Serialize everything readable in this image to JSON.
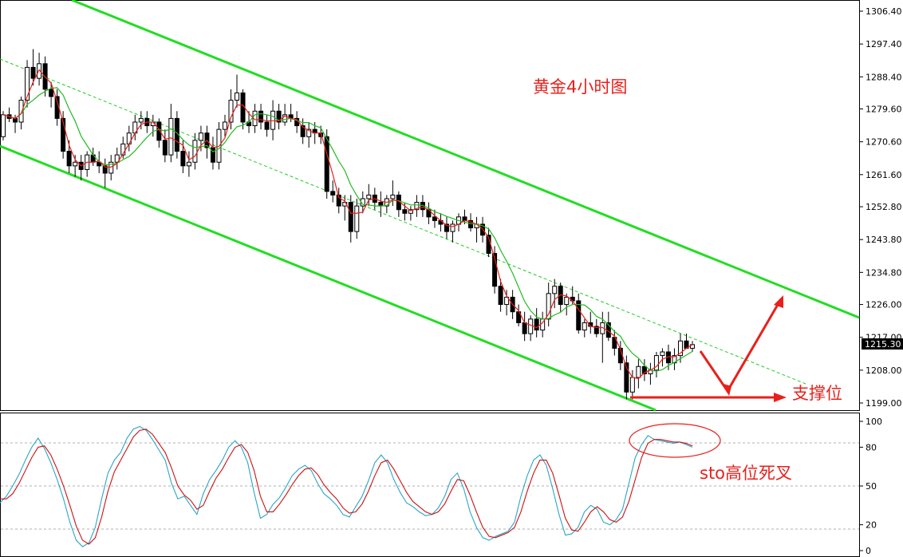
{
  "chart_data": [
    {
      "type": "candlestick",
      "title": "黄金4小时图",
      "y_ticks": [
        "1306.40",
        "1297.40",
        "1288.40",
        "1279.60",
        "1270.60",
        "1261.60",
        "1252.80",
        "1243.80",
        "1234.80",
        "1226.00",
        "1217.00",
        "1208.00",
        "1199.00"
      ],
      "ylim": [
        1197.6,
        1309.2
      ],
      "current_price": "1215.30",
      "support_label": "支撑位",
      "grid": false,
      "colors": {
        "channel": "#22dd22",
        "midline": "#22cc22",
        "ma_fast": "#e8201b",
        "ma_slow": "#22bb22",
        "annotation": "#e8201b",
        "candle": "#000000"
      },
      "candles": [
        [
          1272,
          1279,
          1271,
          1278
        ],
        [
          1278,
          1280,
          1276,
          1277
        ],
        [
          1277,
          1278,
          1273,
          1276
        ],
        [
          1276,
          1283,
          1274,
          1282
        ],
        [
          1282,
          1293,
          1280,
          1291
        ],
        [
          1291,
          1296,
          1286,
          1288
        ],
        [
          1288,
          1295,
          1286,
          1292
        ],
        [
          1292,
          1294,
          1283,
          1285
        ],
        [
          1285,
          1287,
          1280,
          1283
        ],
        [
          1283,
          1285,
          1275,
          1277
        ],
        [
          1277,
          1279,
          1266,
          1268
        ],
        [
          1268,
          1271,
          1262,
          1264
        ],
        [
          1264,
          1267,
          1261,
          1265
        ],
        [
          1265,
          1267,
          1260,
          1263
        ],
        [
          1263,
          1268,
          1261,
          1267
        ],
        [
          1267,
          1269,
          1264,
          1265
        ],
        [
          1265,
          1268,
          1262,
          1264
        ],
        [
          1264,
          1266,
          1258,
          1262
        ],
        [
          1262,
          1267,
          1260,
          1265
        ],
        [
          1265,
          1269,
          1263,
          1267
        ],
        [
          1267,
          1272,
          1266,
          1270
        ],
        [
          1270,
          1275,
          1268,
          1273
        ],
        [
          1273,
          1278,
          1271,
          1276
        ],
        [
          1276,
          1279,
          1274,
          1277
        ],
        [
          1277,
          1279,
          1273,
          1275
        ],
        [
          1275,
          1278,
          1272,
          1276
        ],
        [
          1276,
          1277,
          1269,
          1271
        ],
        [
          1271,
          1274,
          1265,
          1267
        ],
        [
          1267,
          1281,
          1265,
          1277
        ],
        [
          1277,
          1279,
          1266,
          1268
        ],
        [
          1268,
          1271,
          1262,
          1264
        ],
        [
          1264,
          1268,
          1261,
          1265
        ],
        [
          1265,
          1273,
          1263,
          1271
        ],
        [
          1271,
          1275,
          1268,
          1273
        ],
        [
          1273,
          1275,
          1266,
          1269
        ],
        [
          1269,
          1272,
          1263,
          1265
        ],
        [
          1265,
          1276,
          1263,
          1274
        ],
        [
          1274,
          1278,
          1272,
          1276
        ],
        [
          1276,
          1285,
          1274,
          1282
        ],
        [
          1282,
          1289,
          1280,
          1284
        ],
        [
          1284,
          1285,
          1274,
          1276
        ],
        [
          1276,
          1279,
          1273,
          1275
        ],
        [
          1275,
          1281,
          1273,
          1279
        ],
        [
          1279,
          1281,
          1274,
          1276
        ],
        [
          1276,
          1278,
          1272,
          1274
        ],
        [
          1274,
          1282,
          1271,
          1279
        ],
        [
          1279,
          1281,
          1274,
          1276
        ],
        [
          1276,
          1281,
          1275,
          1278
        ],
        [
          1278,
          1281,
          1276,
          1277
        ],
        [
          1277,
          1279,
          1273,
          1275
        ],
        [
          1275,
          1277,
          1270,
          1272
        ],
        [
          1272,
          1276,
          1269,
          1274
        ],
        [
          1274,
          1276,
          1270,
          1273
        ],
        [
          1273,
          1275,
          1270,
          1272
        ],
        [
          1272,
          1274,
          1255,
          1257
        ],
        [
          1257,
          1260,
          1254,
          1256
        ],
        [
          1256,
          1258,
          1251,
          1253
        ],
        [
          1253,
          1256,
          1249,
          1254
        ],
        [
          1254,
          1256,
          1243,
          1246
        ],
        [
          1246,
          1255,
          1244,
          1253
        ],
        [
          1253,
          1257,
          1251,
          1255
        ],
        [
          1255,
          1259,
          1253,
          1256
        ],
        [
          1256,
          1258,
          1252,
          1254
        ],
        [
          1254,
          1257,
          1250,
          1253
        ],
        [
          1253,
          1256,
          1251,
          1255
        ],
        [
          1255,
          1260,
          1253,
          1256
        ],
        [
          1256,
          1257,
          1250,
          1252
        ],
        [
          1252,
          1254,
          1249,
          1251
        ],
        [
          1251,
          1253,
          1249,
          1252
        ],
        [
          1252,
          1256,
          1250,
          1254
        ],
        [
          1254,
          1256,
          1250,
          1252
        ],
        [
          1252,
          1254,
          1248,
          1250
        ],
        [
          1250,
          1252,
          1247,
          1249
        ],
        [
          1249,
          1251,
          1246,
          1248
        ],
        [
          1248,
          1250,
          1244,
          1246
        ],
        [
          1246,
          1249,
          1243,
          1248
        ],
        [
          1248,
          1251,
          1246,
          1250
        ],
        [
          1250,
          1252,
          1248,
          1249
        ],
        [
          1249,
          1251,
          1246,
          1247
        ],
        [
          1247,
          1250,
          1243,
          1248
        ],
        [
          1248,
          1250,
          1243,
          1245
        ],
        [
          1245,
          1247,
          1239,
          1240
        ],
        [
          1240,
          1242,
          1229,
          1231
        ],
        [
          1231,
          1233,
          1224,
          1226
        ],
        [
          1226,
          1230,
          1223,
          1228
        ],
        [
          1228,
          1230,
          1222,
          1224
        ],
        [
          1224,
          1226,
          1220,
          1221
        ],
        [
          1221,
          1224,
          1216,
          1218
        ],
        [
          1218,
          1223,
          1216,
          1222
        ],
        [
          1222,
          1225,
          1217,
          1219
        ],
        [
          1219,
          1224,
          1217,
          1222
        ],
        [
          1222,
          1232,
          1220,
          1229
        ],
        [
          1229,
          1233,
          1225,
          1231
        ],
        [
          1231,
          1232,
          1224,
          1226
        ],
        [
          1226,
          1229,
          1223,
          1228
        ],
        [
          1228,
          1231,
          1226,
          1227
        ],
        [
          1227,
          1229,
          1218,
          1219
        ],
        [
          1219,
          1222,
          1217,
          1221
        ],
        [
          1221,
          1224,
          1218,
          1220
        ],
        [
          1220,
          1222,
          1217,
          1218
        ],
        [
          1218,
          1224,
          1210,
          1221
        ],
        [
          1221,
          1224,
          1216,
          1217
        ],
        [
          1217,
          1219,
          1212,
          1214
        ],
        [
          1214,
          1216,
          1208,
          1210
        ],
        [
          1210,
          1212,
          1200,
          1202
        ],
        [
          1202,
          1208,
          1200,
          1206
        ],
        [
          1206,
          1211,
          1203,
          1209
        ],
        [
          1209,
          1211,
          1205,
          1207
        ],
        [
          1207,
          1210,
          1204,
          1208
        ],
        [
          1208,
          1213,
          1206,
          1212
        ],
        [
          1212,
          1214,
          1209,
          1213
        ],
        [
          1213,
          1215,
          1208,
          1210
        ],
        [
          1210,
          1214,
          1208,
          1212
        ],
        [
          1212,
          1218,
          1210,
          1216
        ],
        [
          1216,
          1218,
          1214,
          1214
        ],
        [
          1214,
          1216,
          1213,
          1215
        ]
      ]
    },
    {
      "type": "line",
      "indicator": "stochastic",
      "y_ticks": [
        "100",
        "80",
        "50",
        "20",
        "0"
      ],
      "ylim": [
        0,
        100
      ],
      "annotation": "sto高位死叉",
      "series": [
        {
          "color": "#2aa6c8",
          "values": [
            37,
            42,
            50,
            59,
            70,
            80,
            87,
            79,
            68,
            55,
            40,
            22,
            8,
            3,
            6,
            18,
            40,
            60,
            70,
            76,
            87,
            94,
            96,
            93,
            86,
            78,
            70,
            52,
            40,
            42,
            35,
            28,
            44,
            55,
            62,
            70,
            80,
            85,
            80,
            68,
            45,
            25,
            28,
            36,
            41,
            49,
            58,
            63,
            66,
            62,
            52,
            44,
            40,
            35,
            28,
            26,
            34,
            42,
            54,
            68,
            74,
            68,
            55,
            45,
            37,
            34,
            30,
            27,
            28,
            33,
            42,
            55,
            60,
            48,
            30,
            18,
            10,
            8,
            11,
            13,
            15,
            22,
            42,
            58,
            70,
            74,
            66,
            48,
            28,
            12,
            13,
            18,
            30,
            35,
            32,
            22,
            20,
            24,
            32,
            52,
            72,
            82,
            89,
            86,
            85,
            84,
            83,
            84,
            82,
            80
          ]
        },
        {
          "color": "#cc1111",
          "values": [
            40,
            40,
            44,
            52,
            62,
            72,
            80,
            81,
            74,
            63,
            50,
            35,
            19,
            8,
            5,
            10,
            26,
            46,
            61,
            70,
            79,
            88,
            93,
            94,
            90,
            83,
            76,
            64,
            50,
            43,
            39,
            32,
            35,
            46,
            56,
            63,
            72,
            80,
            82,
            76,
            62,
            42,
            30,
            30,
            36,
            43,
            51,
            58,
            63,
            64,
            59,
            51,
            45,
            40,
            33,
            29,
            30,
            36,
            46,
            58,
            68,
            70,
            63,
            54,
            45,
            38,
            34,
            30,
            28,
            30,
            36,
            46,
            55,
            54,
            43,
            30,
            18,
            11,
            10,
            12,
            14,
            18,
            30,
            46,
            60,
            70,
            70,
            60,
            43,
            25,
            16,
            15,
            22,
            30,
            34,
            30,
            24,
            22,
            26,
            38,
            55,
            72,
            83,
            86,
            86,
            85,
            84,
            84,
            83,
            81
          ]
        }
      ]
    }
  ]
}
